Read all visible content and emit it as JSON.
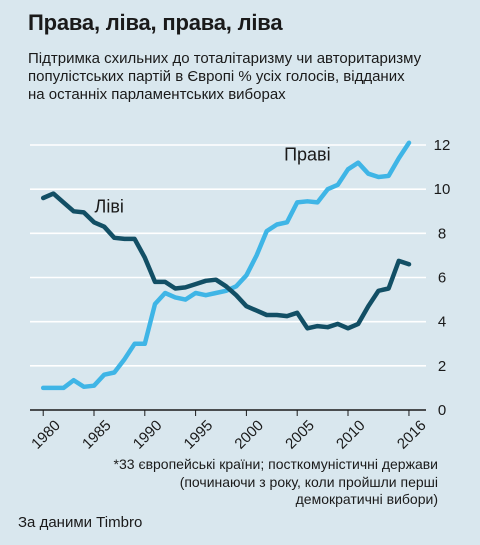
{
  "title": "Права, ліва, права, ліва",
  "subtitle_lines": [
    "Підтримка схильних до тоталітаризму чи авторитаризму",
    "популістських партій в Європі % усіх голосів, відданих",
    "на останніх парламентських виборах"
  ],
  "footnote_lines": [
    "*33 європейські країни; посткомуністичні держави",
    "(починаючи з року, коли пройшли перші",
    "демократичні вибори)"
  ],
  "source": "За даними Timbro",
  "colors": {
    "background": "#d9e7ee",
    "right_series": "#3fb5e6",
    "left_series": "#124f65",
    "grid": "#ffffff"
  },
  "chart_data": {
    "type": "line",
    "x": [
      1980,
      1981,
      1982,
      1983,
      1984,
      1985,
      1986,
      1987,
      1988,
      1989,
      1990,
      1991,
      1992,
      1993,
      1994,
      1995,
      1996,
      1997,
      1998,
      1999,
      2000,
      2001,
      2002,
      2003,
      2004,
      2005,
      2006,
      2007,
      2008,
      2009,
      2010,
      2011,
      2012,
      2013,
      2014,
      2015,
      2016
    ],
    "xlim": [
      1978.7,
      2016.3
    ],
    "ylim": [
      0,
      12
    ],
    "y_ticks": [
      0,
      2,
      4,
      6,
      8,
      10,
      12
    ],
    "y_tick_labels": [
      "0",
      "2",
      "4",
      "6",
      "8",
      "10",
      "12"
    ],
    "x_ticks": [
      1980,
      1985,
      1990,
      1995,
      2000,
      2005,
      2010,
      2016
    ],
    "x_tick_labels": [
      "1980",
      "1985",
      "1990",
      "1995",
      "2000",
      "2005",
      "2010",
      "2016"
    ],
    "grid": "horizontal",
    "series": [
      {
        "name": "Праві",
        "color": "#3fb5e6",
        "values": [
          1.0,
          1.0,
          1.0,
          1.35,
          1.05,
          1.1,
          1.6,
          1.7,
          2.3,
          3.0,
          3.0,
          4.8,
          5.3,
          5.1,
          5.0,
          5.3,
          5.2,
          5.3,
          5.4,
          5.6,
          6.1,
          7.0,
          8.1,
          8.4,
          8.5,
          9.4,
          9.45,
          9.4,
          10.0,
          10.2,
          10.9,
          11.2,
          10.7,
          10.55,
          10.6,
          11.4,
          12.1
        ]
      },
      {
        "name": "Ліві",
        "color": "#124f65",
        "values": [
          9.6,
          9.8,
          9.4,
          9.0,
          8.95,
          8.5,
          8.3,
          7.8,
          7.75,
          7.75,
          6.9,
          5.8,
          5.8,
          5.5,
          5.55,
          5.7,
          5.85,
          5.9,
          5.6,
          5.2,
          4.7,
          4.5,
          4.3,
          4.3,
          4.25,
          4.4,
          3.7,
          3.8,
          3.75,
          3.9,
          3.7,
          3.9,
          4.7,
          5.4,
          5.5,
          6.75,
          6.6
        ]
      }
    ]
  }
}
